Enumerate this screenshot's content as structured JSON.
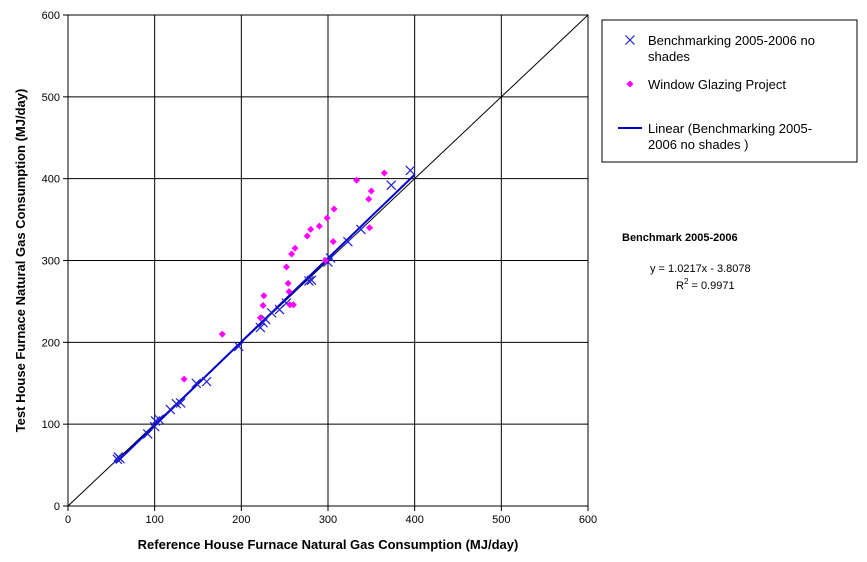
{
  "chart_data": {
    "type": "scatter",
    "xlabel": "Reference House Furnace Natural Gas Consumption (MJ/day)",
    "ylabel": "Test House Furnace Natural Gas Consumption (MJ/day)",
    "xlim": [
      0,
      600
    ],
    "ylim": [
      0,
      600
    ],
    "xticks": [
      0,
      100,
      200,
      300,
      400,
      500,
      600
    ],
    "yticks": [
      0,
      100,
      200,
      300,
      400,
      500,
      600
    ],
    "grid": true,
    "legend_position": "right",
    "series": [
      {
        "name": "Benchmarking 2005-2006 no shades",
        "marker": "x",
        "color": "#1f1fd0",
        "points": [
          [
            57,
            57
          ],
          [
            58,
            60
          ],
          [
            60,
            58
          ],
          [
            92,
            88
          ],
          [
            100,
            97
          ],
          [
            101,
            104
          ],
          [
            105,
            106
          ],
          [
            118,
            118
          ],
          [
            125,
            125
          ],
          [
            130,
            126
          ],
          [
            148,
            150
          ],
          [
            160,
            152
          ],
          [
            197,
            195
          ],
          [
            222,
            218
          ],
          [
            225,
            224
          ],
          [
            228,
            228
          ],
          [
            235,
            236
          ],
          [
            244,
            240
          ],
          [
            252,
            248
          ],
          [
            278,
            275
          ],
          [
            281,
            276
          ],
          [
            300,
            298
          ],
          [
            303,
            303
          ],
          [
            323,
            323
          ],
          [
            338,
            338
          ],
          [
            373,
            392
          ],
          [
            395,
            410
          ]
        ]
      },
      {
        "name": "Window Glazing Project",
        "marker": "diamond",
        "color": "#ff00ff",
        "points": [
          [
            134,
            155
          ],
          [
            178,
            210
          ],
          [
            222,
            230
          ],
          [
            225,
            245
          ],
          [
            226,
            257
          ],
          [
            252,
            292
          ],
          [
            254,
            272
          ],
          [
            255,
            262
          ],
          [
            256,
            246
          ],
          [
            258,
            308
          ],
          [
            260,
            246
          ],
          [
            262,
            315
          ],
          [
            276,
            330
          ],
          [
            280,
            338
          ],
          [
            290,
            342
          ],
          [
            297,
            300
          ],
          [
            299,
            352
          ],
          [
            306,
            323
          ],
          [
            307,
            363
          ],
          [
            333,
            398
          ],
          [
            347,
            375
          ],
          [
            348,
            340
          ],
          [
            350,
            385
          ],
          [
            365,
            407
          ]
        ]
      },
      {
        "name": "Linear (Benchmarking 2005-2006 no shades )",
        "type": "line",
        "color": "#0000cc",
        "points": [
          [
            55,
            52.4
          ],
          [
            400,
            404.9
          ]
        ]
      }
    ],
    "reference_line": {
      "points": [
        [
          0,
          0
        ],
        [
          600,
          600
        ]
      ],
      "color": "#000000"
    },
    "legend_entries": [
      [
        "Benchmarking 2005-2006 no",
        "shades"
      ],
      [
        "Window Glazing Project"
      ],
      [
        "Linear (Benchmarking 2005-",
        "2006 no shades )"
      ]
    ],
    "annotation": {
      "title": "Benchmark 2005-2006",
      "equation": "y = 1.0217x - 3.8078",
      "r2_prefix": "R",
      "r2_sup": "2",
      "r2_value": " = 0.9971"
    }
  }
}
